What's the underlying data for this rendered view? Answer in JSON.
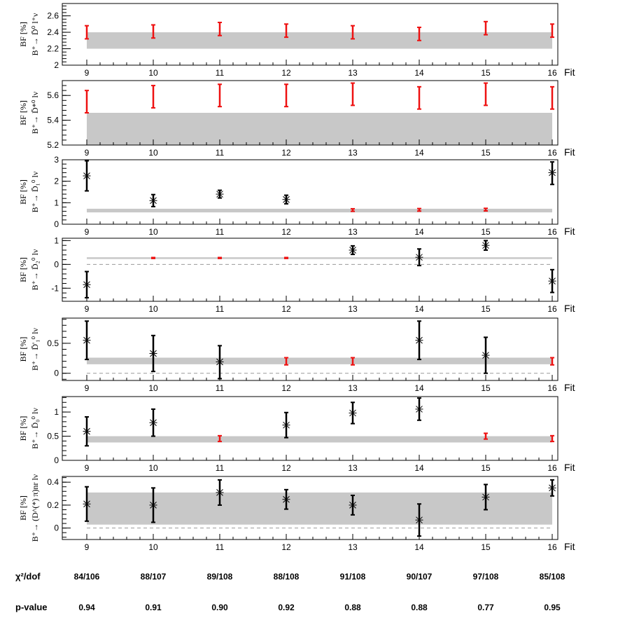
{
  "chart_data": [
    {
      "type": "scatter",
      "ylabel_line1": "BF [%]",
      "ylabel_line2": "B⁺→ D̄⁰ l⁺ν",
      "xlabel": "Fit",
      "x": [
        9,
        10,
        11,
        12,
        13,
        14,
        15,
        16
      ],
      "ylim": [
        2.0,
        2.75
      ],
      "yticks": [
        2,
        2.2,
        2.4,
        2.6
      ],
      "band": [
        2.2,
        2.4
      ],
      "baseline": null,
      "values": [
        2.4,
        2.41,
        2.44,
        2.42,
        2.4,
        2.38,
        2.45,
        2.42
      ],
      "err_low": [
        0.08,
        0.08,
        0.08,
        0.08,
        0.08,
        0.08,
        0.08,
        0.08
      ],
      "err_high": [
        0.08,
        0.08,
        0.08,
        0.08,
        0.08,
        0.08,
        0.08,
        0.08
      ],
      "colors": [
        "red",
        "red",
        "red",
        "red",
        "red",
        "red",
        "red",
        "red"
      ]
    },
    {
      "type": "scatter",
      "ylabel_line1": "BF [%]",
      "ylabel_line2": "B⁺→ D̄*⁰ lν",
      "xlabel": "Fit",
      "x": [
        9,
        10,
        11,
        12,
        13,
        14,
        15,
        16
      ],
      "ylim": [
        5.2,
        5.72
      ],
      "yticks": [
        5.2,
        5.4,
        5.6
      ],
      "band": [
        5.2,
        5.46
      ],
      "baseline": null,
      "values": [
        5.55,
        5.59,
        5.6,
        5.6,
        5.61,
        5.58,
        5.61,
        5.58
      ],
      "err_low": [
        0.09,
        0.09,
        0.09,
        0.09,
        0.09,
        0.09,
        0.09,
        0.09
      ],
      "err_high": [
        0.09,
        0.09,
        0.09,
        0.09,
        0.09,
        0.09,
        0.09,
        0.09
      ],
      "colors": [
        "red",
        "red",
        "red",
        "red",
        "red",
        "red",
        "red",
        "red"
      ]
    },
    {
      "type": "scatter",
      "ylabel_line1": "BF [%]",
      "ylabel_line2": "B⁺→ D̄₁⁰ lν",
      "xlabel": "Fit",
      "x": [
        9,
        10,
        11,
        12,
        13,
        14,
        15,
        16
      ],
      "ylim": [
        0,
        3
      ],
      "yticks": [
        0,
        1,
        2,
        3
      ],
      "band": [
        0.55,
        0.72
      ],
      "baseline": null,
      "values": [
        2.25,
        1.1,
        1.4,
        1.15,
        0.66,
        0.67,
        0.68,
        2.4
      ],
      "err_low": [
        0.7,
        0.28,
        0.18,
        0.2,
        0.06,
        0.06,
        0.06,
        0.55
      ],
      "err_high": [
        0.7,
        0.28,
        0.18,
        0.2,
        0.06,
        0.06,
        0.06,
        0.5
      ],
      "colors": [
        "black",
        "black",
        "black",
        "black",
        "red",
        "red",
        "red",
        "black"
      ]
    },
    {
      "type": "scatter",
      "ylabel_line1": "BF [%]",
      "ylabel_line2": "B⁺→ D̄₂⁰ lν",
      "xlabel": "Fit",
      "x": [
        9,
        10,
        11,
        12,
        13,
        14,
        15,
        16
      ],
      "ylim": [
        -1.55,
        1.1
      ],
      "yticks": [
        -1,
        0,
        1
      ],
      "band": [
        0.24,
        0.3
      ],
      "baseline": 0,
      "values": [
        -0.85,
        0.27,
        0.27,
        0.27,
        0.6,
        0.3,
        0.8,
        -0.7
      ],
      "err_low": [
        0.55,
        0.02,
        0.02,
        0.02,
        0.18,
        0.35,
        0.2,
        0.48
      ],
      "err_high": [
        0.55,
        0.02,
        0.02,
        0.02,
        0.18,
        0.35,
        0.2,
        0.48
      ],
      "colors": [
        "black",
        "red",
        "red",
        "red",
        "black",
        "black",
        "black",
        "black"
      ]
    },
    {
      "type": "scatter",
      "ylabel_line1": "BF [%]",
      "ylabel_line2": "B⁺→ D̄'₁⁰ lν",
      "xlabel": "Fit",
      "x": [
        9,
        10,
        11,
        12,
        13,
        14,
        15,
        16
      ],
      "ylim": [
        -0.12,
        0.92
      ],
      "yticks": [
        0,
        0.5
      ],
      "band": [
        0.15,
        0.26
      ],
      "baseline": 0,
      "values": [
        0.55,
        0.33,
        0.19,
        0.2,
        0.2,
        0.55,
        0.3,
        0.2
      ],
      "err_low": [
        0.32,
        0.3,
        0.28,
        0.06,
        0.06,
        0.32,
        0.3,
        0.06
      ],
      "err_high": [
        0.32,
        0.3,
        0.27,
        0.06,
        0.06,
        0.32,
        0.3,
        0.06
      ],
      "colors": [
        "black",
        "black",
        "black",
        "red",
        "red",
        "black",
        "black",
        "red"
      ]
    },
    {
      "type": "scatter",
      "ylabel_line1": "BF [%]",
      "ylabel_line2": "B⁺→ D̄₀⁰ lν",
      "xlabel": "Fit",
      "x": [
        9,
        10,
        11,
        12,
        13,
        14,
        15,
        16
      ],
      "ylim": [
        0,
        1.32
      ],
      "yticks": [
        0,
        0.5,
        1
      ],
      "band": [
        0.37,
        0.5
      ],
      "baseline": null,
      "values": [
        0.6,
        0.78,
        0.45,
        0.73,
        0.98,
        1.06,
        0.5,
        0.45
      ],
      "err_low": [
        0.3,
        0.28,
        0.06,
        0.26,
        0.22,
        0.23,
        0.06,
        0.06
      ],
      "err_high": [
        0.3,
        0.28,
        0.06,
        0.26,
        0.22,
        0.23,
        0.06,
        0.06
      ],
      "colors": [
        "black",
        "black",
        "red",
        "black",
        "black",
        "black",
        "red",
        "red"
      ]
    },
    {
      "type": "scatter",
      "ylabel_line1": "BF [%]",
      "ylabel_line2": "B⁺→ (D^(*) π)nr lν",
      "xlabel": "Fit",
      "x": [
        9,
        10,
        11,
        12,
        13,
        14,
        15,
        16
      ],
      "ylim": [
        -0.1,
        0.45
      ],
      "yticks": [
        0,
        0.2,
        0.4
      ],
      "band": [
        0.03,
        0.31
      ],
      "baseline": 0,
      "values": [
        0.21,
        0.2,
        0.31,
        0.25,
        0.2,
        0.07,
        0.27,
        0.35
      ],
      "err_low": [
        0.15,
        0.15,
        0.11,
        0.085,
        0.085,
        0.14,
        0.11,
        0.07
      ],
      "err_high": [
        0.15,
        0.15,
        0.11,
        0.085,
        0.085,
        0.14,
        0.11,
        0.07
      ],
      "colors": [
        "black",
        "black",
        "black",
        "black",
        "black",
        "black",
        "black",
        "black"
      ]
    }
  ],
  "summary": {
    "chi2_label": "χ²/dof",
    "chi2_values": [
      "84/106",
      "88/107",
      "89/108",
      "88/108",
      "91/108",
      "90/107",
      "97/108",
      "85/108"
    ],
    "pvalue_label": "p-value",
    "pvalue_values": [
      "0.94",
      "0.91",
      "0.90",
      "0.92",
      "0.88",
      "0.88",
      "0.77",
      "0.95"
    ]
  },
  "colors": {
    "band": "#c8c8c8",
    "red": "#ee1111",
    "black": "#000000"
  }
}
